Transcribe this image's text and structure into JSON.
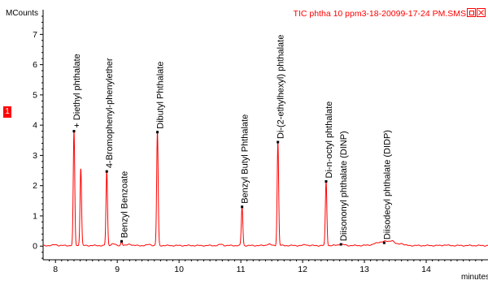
{
  "pane": {
    "number": "1"
  },
  "chart_data": {
    "type": "line",
    "title": "TIC phtha 10 ppm3-18-20099-17-24 PM.SMS",
    "xlabel": "minutes",
    "ylabel": "MCounts",
    "xlim": [
      7.8,
      15.0
    ],
    "ylim": [
      -0.45,
      7.6
    ],
    "x_ticks": [
      8,
      9,
      10,
      11,
      12,
      13,
      14
    ],
    "y_ticks": [
      0,
      1,
      2,
      3,
      4,
      5,
      6,
      7
    ],
    "grid": false,
    "legend": "none",
    "baseline": 0.02,
    "series_color": "#ff0000",
    "peaks": [
      {
        "rt": 8.3,
        "height": 3.78,
        "width": 0.012,
        "label": "+ Diethyl phthalate",
        "marker": true
      },
      {
        "rt": 8.41,
        "height": 2.55,
        "width": 0.012,
        "label": "",
        "marker": false
      },
      {
        "rt": 8.83,
        "height": 2.45,
        "width": 0.012,
        "label": "4-Bromophenyl-phenylether",
        "marker": true
      },
      {
        "rt": 9.07,
        "height": 0.14,
        "width": 0.012,
        "label": "Benzyl Benzoate",
        "marker": true
      },
      {
        "rt": 9.65,
        "height": 3.75,
        "width": 0.012,
        "label": "Dibutyl Phthalate",
        "marker": true
      },
      {
        "rt": 11.02,
        "height": 1.28,
        "width": 0.012,
        "label": "Benzyl Butyl Phthalate",
        "marker": true
      },
      {
        "rt": 11.6,
        "height": 3.42,
        "width": 0.012,
        "label": "Di-(2-ethylhexyl) phthalate",
        "marker": true
      },
      {
        "rt": 12.38,
        "height": 2.12,
        "width": 0.012,
        "label": "Di-n-octyl phthalate",
        "marker": true
      },
      {
        "rt": 12.62,
        "height": 0.04,
        "width": 0.05,
        "label": "Diisononyl phthalate (DINP)",
        "marker": true
      },
      {
        "rt": 13.32,
        "height": 0.09,
        "width": 0.12,
        "label": "Diisodecyl phthalate (DIDP)",
        "marker": true
      }
    ],
    "minor_peaks": [
      {
        "rt": 8.0,
        "height": 0.03
      },
      {
        "rt": 8.93,
        "height": 0.06
      },
      {
        "rt": 9.2,
        "height": 0.05
      },
      {
        "rt": 9.52,
        "height": 0.04
      },
      {
        "rt": 10.68,
        "height": 0.04
      },
      {
        "rt": 11.45,
        "height": 0.05
      },
      {
        "rt": 12.05,
        "height": 0.03
      },
      {
        "rt": 13.45,
        "height": 0.08
      },
      {
        "rt": 13.6,
        "height": 0.06
      },
      {
        "rt": 14.3,
        "height": 0.02
      }
    ]
  }
}
